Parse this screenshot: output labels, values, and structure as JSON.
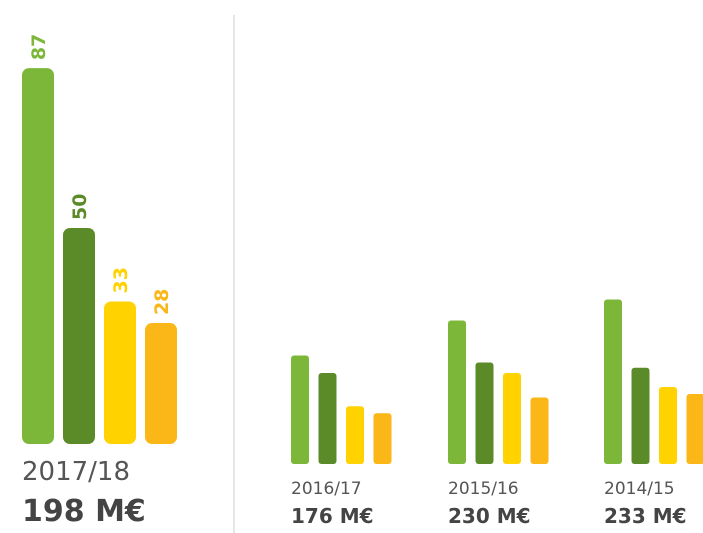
{
  "chart_data": [
    {
      "type": "bar",
      "category": "2017/18",
      "total": "198 M€",
      "values": [
        87,
        50,
        33,
        28
      ],
      "colors": [
        "#7db73a",
        "#5b8a29",
        "#ffd200",
        "#fbb617"
      ],
      "show_value_labels": true
    },
    {
      "type": "bar",
      "category": "2016/17",
      "total": "176 M€",
      "values": [
        62,
        52,
        33,
        29
      ],
      "colors": [
        "#7db73a",
        "#5b8a29",
        "#ffd200",
        "#fbb617"
      ],
      "show_value_labels": false
    },
    {
      "type": "bar",
      "category": "2015/16",
      "total": "230 M€",
      "values": [
        82,
        58,
        52,
        38
      ],
      "colors": [
        "#7db73a",
        "#5b8a29",
        "#ffd200",
        "#fbb617"
      ],
      "show_value_labels": false
    },
    {
      "type": "bar",
      "category": "2014/15",
      "total": "233 M€",
      "values": [
        94,
        55,
        44,
        40
      ],
      "colors": [
        "#7db73a",
        "#5b8a29",
        "#ffd200",
        "#fbb617"
      ],
      "show_value_labels": false
    }
  ]
}
